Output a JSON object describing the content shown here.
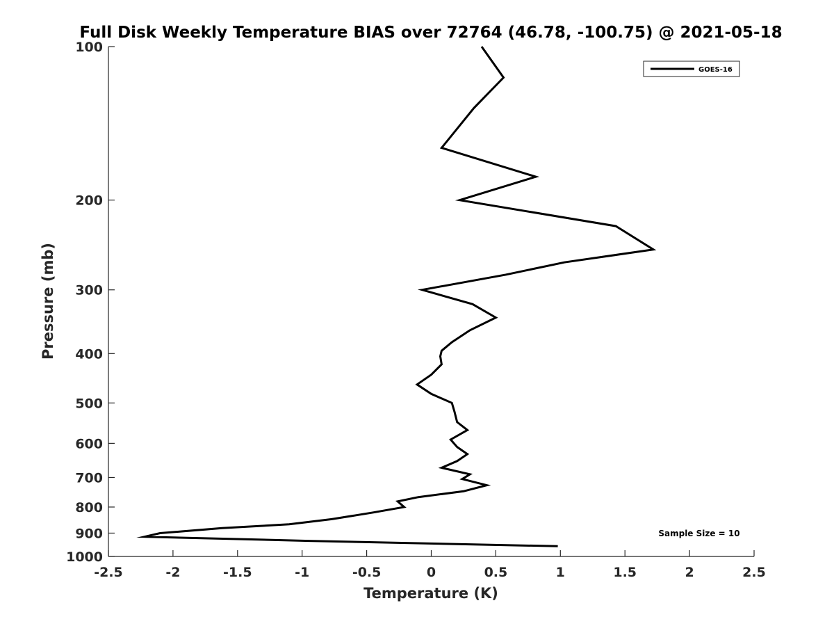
{
  "chart_data": {
    "type": "line",
    "title": "Full Disk Weekly Temperature BIAS over 72764 (46.78, -100.75) @ 2021-05-18",
    "xlabel": "Temperature (K)",
    "ylabel": "Pressure (mb)",
    "xlim": [
      -2.5,
      2.5
    ],
    "ylim": [
      100,
      1000
    ],
    "y_scale": "log",
    "y_reversed": true,
    "grid": false,
    "x_ticks": [
      -2.5,
      -2,
      -1.5,
      -1,
      -0.5,
      0,
      0.5,
      1,
      1.5,
      2,
      2.5
    ],
    "x_tick_labels": [
      "-2.5",
      "-2",
      "-1.5",
      "-1",
      "-0.5",
      "0",
      "0.5",
      "1",
      "1.5",
      "2",
      "2.5"
    ],
    "y_ticks": [
      100,
      200,
      300,
      400,
      500,
      600,
      700,
      800,
      900,
      1000
    ],
    "y_tick_labels": [
      "100",
      "200",
      "300",
      "400",
      "500",
      "600",
      "700",
      "800",
      "900",
      "1000"
    ],
    "legend": {
      "position": "top-right",
      "entries": [
        "GOES-16"
      ]
    },
    "annotation": "Sample Size = 10",
    "series": [
      {
        "name": "GOES-16",
        "color": "#000000",
        "points": [
          [
            0.39,
            100
          ],
          [
            0.56,
            115
          ],
          [
            0.33,
            132
          ],
          [
            0.08,
            158
          ],
          [
            0.81,
            180
          ],
          [
            0.22,
            200
          ],
          [
            1.43,
            225
          ],
          [
            1.72,
            250
          ],
          [
            1.03,
            265
          ],
          [
            0.58,
            280
          ],
          [
            -0.07,
            300
          ],
          [
            0.32,
            320
          ],
          [
            0.5,
            340
          ],
          [
            0.3,
            360
          ],
          [
            0.16,
            380
          ],
          [
            0.08,
            395
          ],
          [
            0.07,
            405
          ],
          [
            0.08,
            420
          ],
          [
            0.0,
            440
          ],
          [
            -0.11,
            460
          ],
          [
            0.0,
            480
          ],
          [
            0.16,
            500
          ],
          [
            0.18,
            520
          ],
          [
            0.2,
            545
          ],
          [
            0.28,
            565
          ],
          [
            0.15,
            590
          ],
          [
            0.2,
            610
          ],
          [
            0.28,
            630
          ],
          [
            0.2,
            650
          ],
          [
            0.08,
            670
          ],
          [
            0.3,
            690
          ],
          [
            0.24,
            705
          ],
          [
            0.43,
            725
          ],
          [
            0.25,
            745
          ],
          [
            -0.1,
            765
          ],
          [
            -0.26,
            780
          ],
          [
            -0.21,
            800
          ],
          [
            -0.45,
            820
          ],
          [
            -0.77,
            845
          ],
          [
            -1.1,
            865
          ],
          [
            -1.62,
            880
          ],
          [
            -2.1,
            900
          ],
          [
            -2.22,
            915
          ],
          [
            -0.95,
            932
          ],
          [
            0.98,
            955
          ]
        ]
      }
    ]
  }
}
